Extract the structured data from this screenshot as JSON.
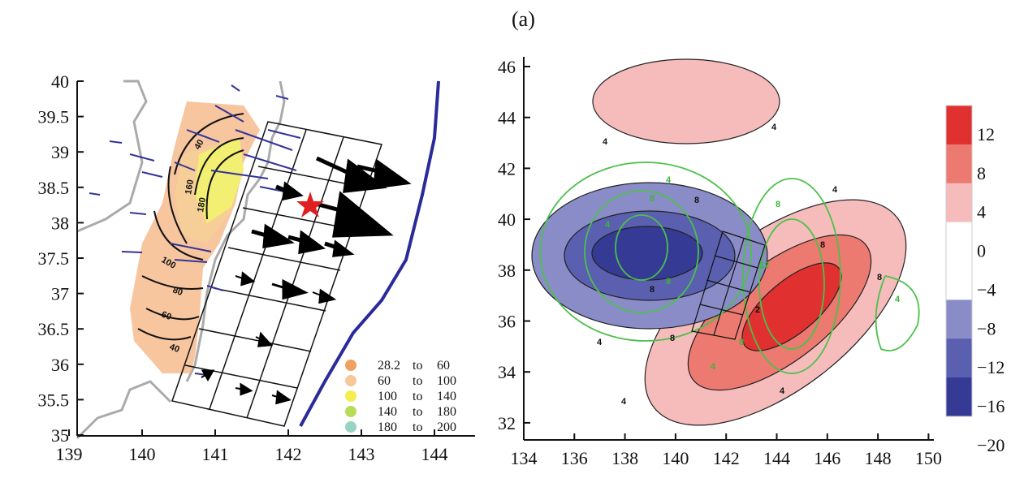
{
  "panel_label": "(a)",
  "left_map": {
    "x_ticks": [
      "139",
      "140",
      "141",
      "142",
      "143",
      "144"
    ],
    "y_ticks": [
      "40",
      "39.5",
      "39",
      "38.5",
      "38",
      "37.5",
      "37",
      "36.5",
      "36",
      "35.5",
      "35"
    ],
    "contour_labels": [
      "40",
      "160",
      "180",
      "100",
      "80",
      "60",
      "40"
    ],
    "legend": [
      {
        "from": "28.2",
        "to_word": "to",
        "to": "60",
        "color": "#f0a060"
      },
      {
        "from": "60",
        "to_word": "to",
        "to": "100",
        "color": "#f6c89a"
      },
      {
        "from": "100",
        "to_word": "to",
        "to": "140",
        "color": "#f4ee50"
      },
      {
        "from": "140",
        "to_word": "to",
        "to": "180",
        "color": "#b8dc58"
      },
      {
        "from": "180",
        "to_word": "to",
        "to": "200",
        "color": "#98d4c4"
      }
    ]
  },
  "right_map": {
    "x_ticks": [
      "134",
      "136",
      "138",
      "140",
      "142",
      "144",
      "146",
      "148",
      "150"
    ],
    "y_ticks": [
      "46",
      "44",
      "42",
      "40",
      "38",
      "36",
      "34",
      "32"
    ],
    "colorbar": {
      "labels": [
        "12",
        "8",
        "4",
        "0",
        "−4",
        "−8",
        "−12",
        "−16",
        "−20"
      ],
      "colors": [
        "#e03030",
        "#ec7a70",
        "#f6bcbc",
        "#ffffff",
        "#ffffff",
        "#8a8cc8",
        "#5a5fb0",
        "#353a94"
      ]
    },
    "contour_labels": [
      "4",
      "4",
      "4",
      "8",
      "8",
      "4",
      "8",
      "2",
      "4",
      "8",
      "4",
      "8"
    ],
    "green_labels": [
      "4",
      "8",
      "8",
      "4",
      "8",
      "12",
      "8",
      "4",
      "4"
    ]
  }
}
